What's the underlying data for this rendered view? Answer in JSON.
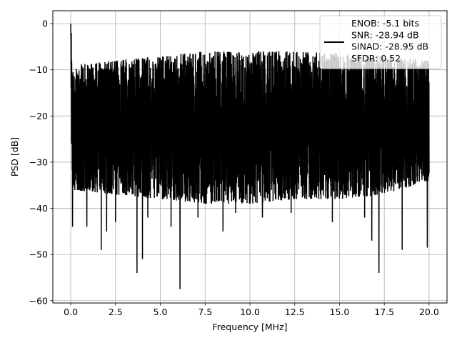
{
  "chart_data": {
    "type": "line",
    "title": "",
    "xlabel": "Frequency [MHz]",
    "ylabel": "PSD [dB]",
    "xlim": [
      -1.0,
      21.0
    ],
    "ylim": [
      -60.5,
      2.8
    ],
    "xticks": [
      0.0,
      2.5,
      5.0,
      7.5,
      10.0,
      12.5,
      15.0,
      17.5,
      20.0
    ],
    "xtick_labels": [
      "0.0",
      "2.5",
      "5.0",
      "7.5",
      "10.0",
      "12.5",
      "15.0",
      "17.5",
      "20.0"
    ],
    "yticks": [
      0,
      -10,
      -20,
      -30,
      -40,
      -50,
      -60
    ],
    "ytick_labels": [
      "0",
      "−10",
      "−20",
      "−30",
      "−40",
      "−50",
      "−60"
    ],
    "grid": true,
    "legend_position": "top-right",
    "legend_lines": [
      "ENOB: -5.1 bits",
      "SNR: -28.94 dB",
      "SINAD: -28.95 dB",
      "SFDR: 0.52"
    ],
    "series": [
      {
        "color": "#000000",
        "x_range": [
          0.0,
          20.0
        ],
        "peak": {
          "x": 0.0,
          "y": 0.0
        },
        "envelope": {
          "x": [
            0.1,
            2.5,
            5.0,
            7.5,
            10.0,
            12.5,
            15.0,
            17.5,
            20.0
          ],
          "top": [
            -9,
            -8,
            -7,
            -6,
            -6,
            -6,
            -6.5,
            -7,
            -8
          ],
          "bottom": [
            -36,
            -37,
            -38,
            -39,
            -39,
            -38,
            -38,
            -37,
            -34
          ]
        },
        "deep_nulls": [
          {
            "x": 0.1,
            "y": -44
          },
          {
            "x": 0.9,
            "y": -44
          },
          {
            "x": 1.7,
            "y": -49
          },
          {
            "x": 2.0,
            "y": -45
          },
          {
            "x": 2.5,
            "y": -43
          },
          {
            "x": 3.7,
            "y": -54
          },
          {
            "x": 4.0,
            "y": -51
          },
          {
            "x": 4.3,
            "y": -42
          },
          {
            "x": 5.6,
            "y": -44
          },
          {
            "x": 6.1,
            "y": -57.5
          },
          {
            "x": 7.1,
            "y": -42
          },
          {
            "x": 8.5,
            "y": -45
          },
          {
            "x": 9.2,
            "y": -41
          },
          {
            "x": 10.7,
            "y": -42
          },
          {
            "x": 12.3,
            "y": -41
          },
          {
            "x": 14.6,
            "y": -43
          },
          {
            "x": 16.4,
            "y": -42
          },
          {
            "x": 16.8,
            "y": -47
          },
          {
            "x": 17.2,
            "y": -54
          },
          {
            "x": 18.5,
            "y": -49
          },
          {
            "x": 19.9,
            "y": -48.5
          }
        ]
      }
    ]
  }
}
